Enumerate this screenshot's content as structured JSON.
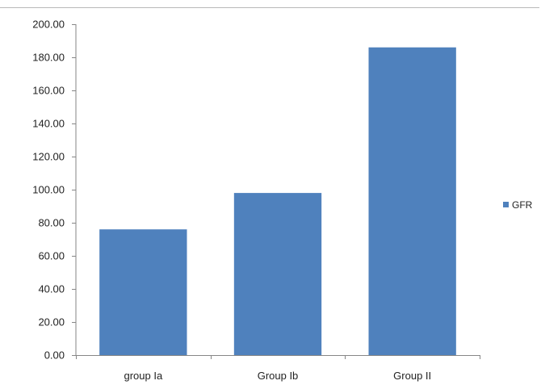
{
  "chart_data": {
    "type": "bar",
    "categories": [
      "group Ia",
      "Group Ib",
      "Group II"
    ],
    "series": [
      {
        "name": "GFR",
        "values": [
          76,
          98,
          186
        ],
        "color": "#4f81bd"
      }
    ],
    "ylim": [
      0,
      200
    ],
    "yticks": [
      0,
      20,
      40,
      60,
      80,
      100,
      120,
      140,
      160,
      180,
      200
    ],
    "ytick_labels": [
      "0.00",
      "20.00",
      "40.00",
      "60.00",
      "80.00",
      "100.00",
      "120.00",
      "140.00",
      "160.00",
      "180.00",
      "200.00"
    ],
    "grid": false,
    "legend": {
      "position": "right",
      "entries": [
        "GFR"
      ]
    }
  }
}
